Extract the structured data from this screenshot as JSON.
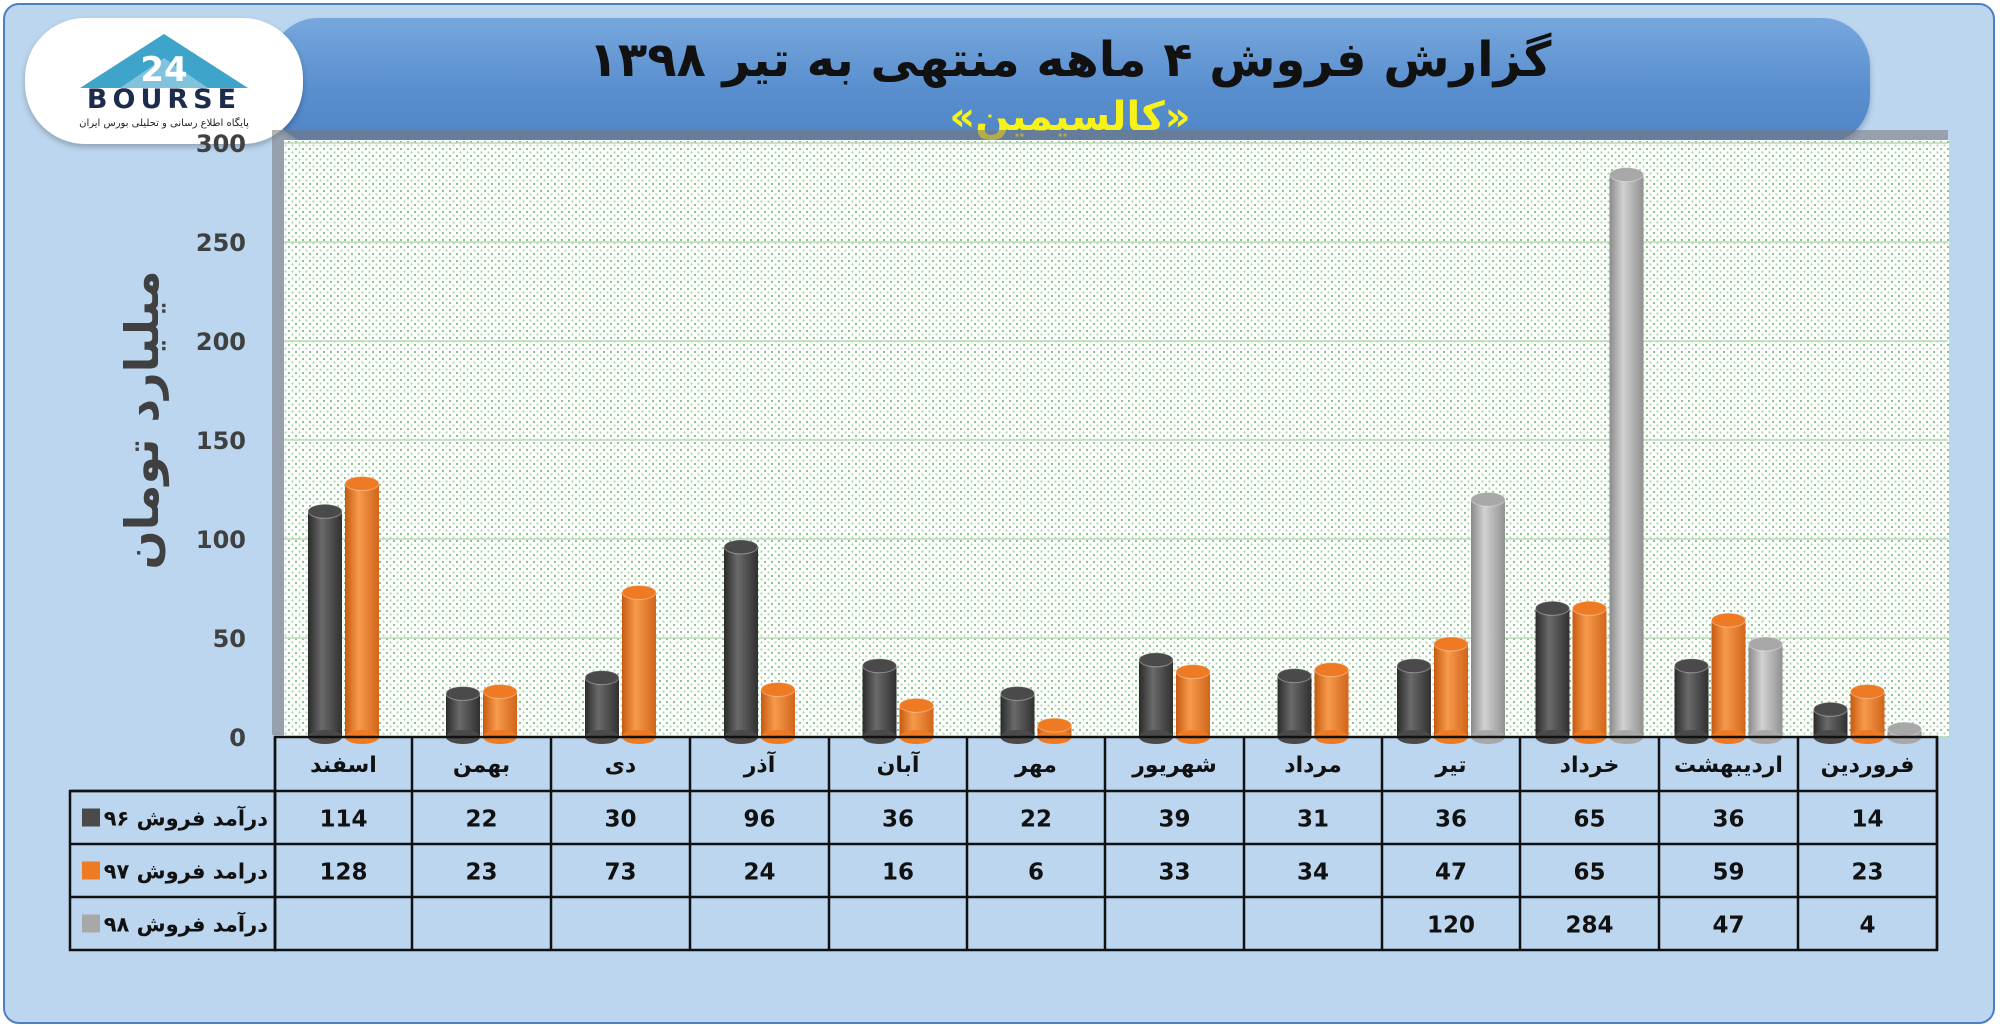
{
  "title": "گزارش فروش ۴ ماهه منتهی به تیر ۱۳۹۸",
  "subtitle": "«کالسیمین»",
  "logo": {
    "name": "BOURSE",
    "number": "24",
    "tagline": "پایگاه اطلاع رسانی و تحلیلی بورس ایران"
  },
  "colors": {
    "series_96": "#4a4a4a",
    "series_97": "#ee7a23",
    "series_98": "#a8a8a8",
    "title_highlight": "#f7f21a",
    "frame": "#bcd6ef"
  },
  "chart_data": {
    "type": "bar",
    "ylabel": "میلیارد تومان",
    "ylim": [
      0,
      300
    ],
    "yticks": [
      0,
      50,
      100,
      150,
      200,
      250,
      300
    ],
    "grid": true,
    "legend": "table-left",
    "categories": [
      "فروردین",
      "اردیبهشت",
      "خرداد",
      "تیر",
      "مرداد",
      "شهریور",
      "مهر",
      "آبان",
      "آذر",
      "دی",
      "بهمن",
      "اسفند"
    ],
    "series": [
      {
        "name": "درآمد فروش ۹۶",
        "values": [
          14,
          36,
          65,
          36,
          31,
          39,
          22,
          36,
          96,
          30,
          22,
          114
        ]
      },
      {
        "name": "درامد فروش ۹۷",
        "values": [
          23,
          59,
          65,
          47,
          34,
          33,
          6,
          16,
          24,
          73,
          23,
          128
        ]
      },
      {
        "name": "درآمد فروش ۹۸",
        "values": [
          4,
          47,
          284,
          120,
          null,
          null,
          null,
          null,
          null,
          null,
          null,
          null
        ]
      }
    ]
  }
}
